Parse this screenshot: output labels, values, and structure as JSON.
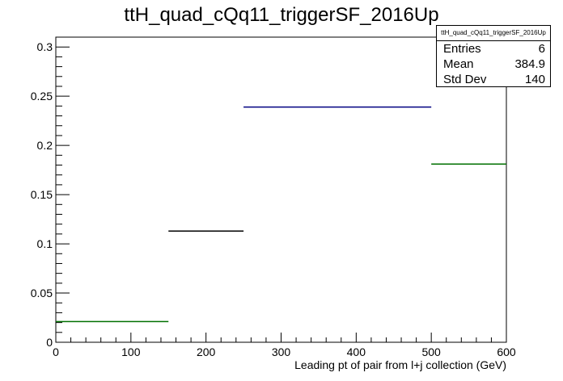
{
  "chart_data": {
    "type": "histogram",
    "title": "ttH_quad_cQq11_triggerSF_2016Up",
    "xlabel": "Leading pt of pair from l+j collection (GeV)",
    "ylabel": "",
    "xlim": [
      0,
      600
    ],
    "ylim": [
      0,
      0.31
    ],
    "x_ticks": [
      "0",
      "100",
      "200",
      "300",
      "400",
      "500",
      "600"
    ],
    "y_ticks": [
      "0",
      "0.05",
      "0.1",
      "0.15",
      "0.2",
      "0.25",
      "0.3"
    ],
    "x_tick_values": [
      0,
      100,
      200,
      300,
      400,
      500,
      600
    ],
    "y_tick_values": [
      0,
      0.05,
      0.1,
      0.15,
      0.2,
      0.25,
      0.3
    ],
    "bins": [
      {
        "x0": 0,
        "x1": 150,
        "value": 0.021,
        "color": "#007000"
      },
      {
        "x0": 150,
        "x1": 250,
        "value": 0.113,
        "color": "#000000"
      },
      {
        "x0": 250,
        "x1": 500,
        "value": 0.239,
        "color": "#000080"
      },
      {
        "x0": 500,
        "x1": 600,
        "value": 0.181,
        "color": "#007000"
      }
    ],
    "grid": false,
    "legend_position": "top-right"
  },
  "stats": {
    "title": "ttH_quad_cQq11_triggerSF_2016Up",
    "entries_label": "Entries",
    "entries_value": "6",
    "mean_label": "Mean",
    "mean_value": "384.9",
    "stddev_label": "Std Dev",
    "stddev_value": "140"
  }
}
